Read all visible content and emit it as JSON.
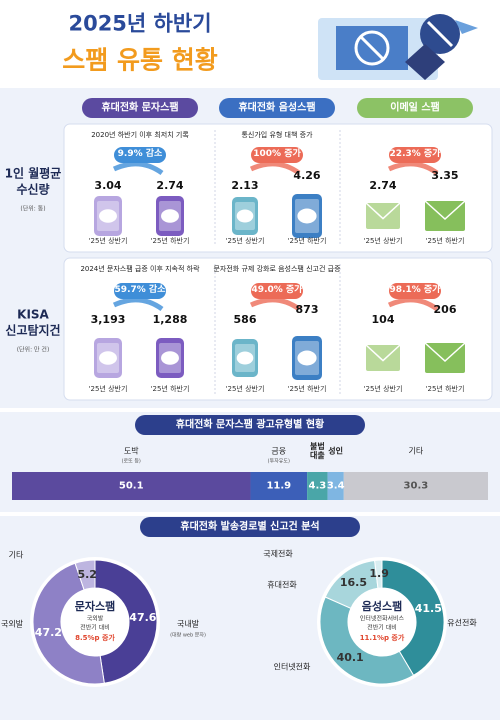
{
  "header": {
    "title": "2025년 하반기",
    "subtitle": "스팸 유통 현황"
  },
  "comparison": {
    "columns": [
      "휴대전화 문자스팸",
      "휴대전화 음성스팸",
      "이메일 스팸"
    ],
    "period_labels": [
      "'25년 상반기",
      "'25년 하반기"
    ],
    "rows": [
      {
        "label": [
          "1인 월평균",
          "수신량"
        ],
        "unit": "(단위: 통)",
        "cells": [
          {
            "note": "2020년 하반기 이후 최저치 기록",
            "change": "9.9% 감소",
            "before": 3.04,
            "after": 2.74
          },
          {
            "note": "통신가입 유형 대책 증가",
            "change": "100% 증가",
            "before": 2.13,
            "after": 4.26
          },
          {
            "change": "22.3% 증가",
            "before": 2.74,
            "after": 3.35
          }
        ]
      },
      {
        "label": [
          "KISA",
          "신고탐지건"
        ],
        "unit": "(단위: 만 건)",
        "cells": [
          {
            "note": "2024년 문자스팸 급증 이후 지속적 하락",
            "change": "59.7% 감소",
            "before": "3,193",
            "after": "1,288"
          },
          {
            "note": "문자전화 규제 강화로 음성스팸 신고건 급증",
            "change": "49.0% 증가",
            "before": 586,
            "after": 873
          },
          {
            "change": "98.1% 증가",
            "before": 104,
            "after": 206
          }
        ]
      }
    ]
  },
  "chart_data": [
    {
      "type": "stacked-bar",
      "title": "휴대전화 문자스팸 광고유형별 현황",
      "categories": [
        "도박",
        "금융",
        "불법대출",
        "성인",
        "기타"
      ],
      "sublabels": [
        "(로또 등)",
        "(투자유도)",
        null,
        null,
        null
      ],
      "values": [
        50.1,
        11.9,
        4.3,
        3.4,
        30.3
      ],
      "colors": [
        "#5b4a9e",
        "#3c5fb8",
        "#4aa6a8",
        "#7fb6e2",
        "#c9c9cf"
      ],
      "xlim": [
        0,
        100
      ]
    },
    {
      "type": "donut",
      "title": "휴대전화 발송경로별 신고건 분석",
      "center_title": "문자스팸",
      "center_lines": [
        "국외발",
        "전반기 대비"
      ],
      "center_highlight": "8.5%p 증가",
      "categories": [
        "국내발",
        "국외발",
        "기타"
      ],
      "sublabels": [
        "(대량 web 문자)",
        null,
        null
      ],
      "values": [
        47.6,
        47.2,
        5.2
      ],
      "colors": [
        "#4a3f96",
        "#8e81c6",
        "#bdb5e0"
      ]
    },
    {
      "type": "donut",
      "center_title": "음성스팸",
      "center_lines": [
        "인터넷전화서비스",
        "전반기 대비"
      ],
      "center_highlight": "11.1%p 증가",
      "categories": [
        "유선전화",
        "인터넷전화",
        "휴대전화",
        "국제전화"
      ],
      "sublabels": [
        null,
        null,
        null,
        null
      ],
      "values": [
        41.5,
        40.1,
        16.5,
        1.9
      ],
      "colors": [
        "#2f8e9a",
        "#6db7c1",
        "#a8d6dc",
        "#d9eef1"
      ]
    }
  ]
}
